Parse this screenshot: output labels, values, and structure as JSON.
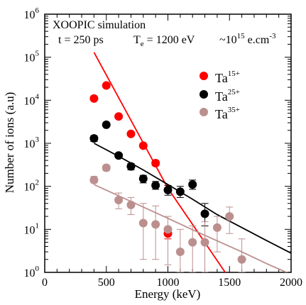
{
  "chart_data": {
    "type": "scatter",
    "title": "",
    "annotations": {
      "line1": "XOOPIC simulation",
      "time": "t = 250 ps",
      "temp_prefix": "T",
      "temp_sub": "e",
      "temp_suffix": " = 1200 eV",
      "density_prefix": "~10",
      "density_exp": "15",
      "density_suffix": " e.cm",
      "density_unit_exp": "-3"
    },
    "xlabel": "Energy (keV)",
    "ylabel": "Number of ions (a.u)",
    "xlim": [
      0,
      2000
    ],
    "ylim": [
      1,
      1000000
    ],
    "y_scale": "log",
    "x_ticks": [
      0,
      500,
      1000,
      1500,
      2000
    ],
    "x_tick_labels": [
      "0",
      "500",
      "1000",
      "1500",
      "2000"
    ],
    "y_ticks": [
      1,
      10,
      100,
      1000,
      10000,
      100000,
      1000000
    ],
    "y_tick_base": "10",
    "y_tick_exps": [
      "0",
      "1",
      "2",
      "3",
      "4",
      "5",
      "6"
    ],
    "grid": false,
    "legend_position": "top-right",
    "series": [
      {
        "name": "Ta",
        "charge": "15+",
        "color": "#ff0000",
        "points": [
          {
            "x": 400,
            "y": 11000
          },
          {
            "x": 500,
            "y": 22000
          },
          {
            "x": 600,
            "y": 4200
          },
          {
            "x": 700,
            "y": 1650
          },
          {
            "x": 800,
            "y": 880
          },
          {
            "x": 900,
            "y": 345,
            "err_low": 300,
            "err_high": 400
          },
          {
            "x": 1000,
            "y": 8,
            "err_low": 6,
            "err_high": 10
          }
        ],
        "fit": [
          [
            400,
            130000
          ],
          [
            1000,
            90
          ],
          [
            1465,
            1
          ]
        ]
      },
      {
        "name": "Ta",
        "charge": "25+",
        "color": "#000000",
        "points": [
          {
            "x": 400,
            "y": 1300,
            "err_low": 1100,
            "err_high": 1500
          },
          {
            "x": 500,
            "y": 2700
          },
          {
            "x": 600,
            "y": 520
          },
          {
            "x": 700,
            "y": 290,
            "err_low": 240,
            "err_high": 340
          },
          {
            "x": 800,
            "y": 150,
            "err_low": 120,
            "err_high": 180
          },
          {
            "x": 900,
            "y": 105,
            "err_low": 85,
            "err_high": 130
          },
          {
            "x": 1000,
            "y": 82,
            "err_low": 62,
            "err_high": 105
          },
          {
            "x": 1100,
            "y": 75,
            "err_low": 55,
            "err_high": 100
          },
          {
            "x": 1200,
            "y": 110,
            "err_low": 85,
            "err_high": 140
          },
          {
            "x": 1300,
            "y": 23,
            "err_low": 12,
            "err_high": 40
          }
        ],
        "fit": [
          [
            400,
            1000
          ],
          [
            600,
            500
          ],
          [
            800,
            240
          ],
          [
            1000,
            110
          ],
          [
            1200,
            50
          ],
          [
            1400,
            22
          ],
          [
            1600,
            11
          ],
          [
            1800,
            5.5
          ],
          [
            2000,
            2.8
          ]
        ]
      },
      {
        "name": "Ta",
        "charge": "35+",
        "color": "#bc8f8f",
        "points": [
          {
            "x": 400,
            "y": 140,
            "err_low": 120,
            "err_high": 170
          },
          {
            "x": 500,
            "y": 270,
            "err_low": 230,
            "err_high": 310
          },
          {
            "x": 600,
            "y": 48,
            "err_low": 30,
            "err_high": 70
          },
          {
            "x": 700,
            "y": 37,
            "err_low": 22,
            "err_high": 55
          },
          {
            "x": 800,
            "y": 14,
            "err_low": 2,
            "err_high": 40
          },
          {
            "x": 900,
            "y": 13,
            "err_low": 2,
            "err_high": 35
          },
          {
            "x": 1000,
            "y": 10,
            "err_low": 1.5,
            "err_high": 20
          },
          {
            "x": 1100,
            "y": 3,
            "err_low": 1,
            "err_high": 10
          },
          {
            "x": 1200,
            "y": 5,
            "err_low": 1,
            "err_high": 12
          },
          {
            "x": 1300,
            "y": 5,
            "err_low": 1,
            "err_high": 15
          },
          {
            "x": 1400,
            "y": 11,
            "err_low": 3,
            "err_high": 20
          },
          {
            "x": 1500,
            "y": 20,
            "err_low": 8,
            "err_high": 33
          },
          {
            "x": 1600,
            "y": 2,
            "err_low": 1,
            "err_high": 6
          }
        ],
        "fit": [
          [
            400,
            110
          ],
          [
            600,
            60
          ],
          [
            800,
            33
          ],
          [
            1000,
            18
          ],
          [
            1200,
            9.8
          ],
          [
            1400,
            5.4
          ],
          [
            1600,
            3
          ],
          [
            1800,
            1.6
          ],
          [
            2000,
            0.9
          ]
        ]
      }
    ]
  }
}
